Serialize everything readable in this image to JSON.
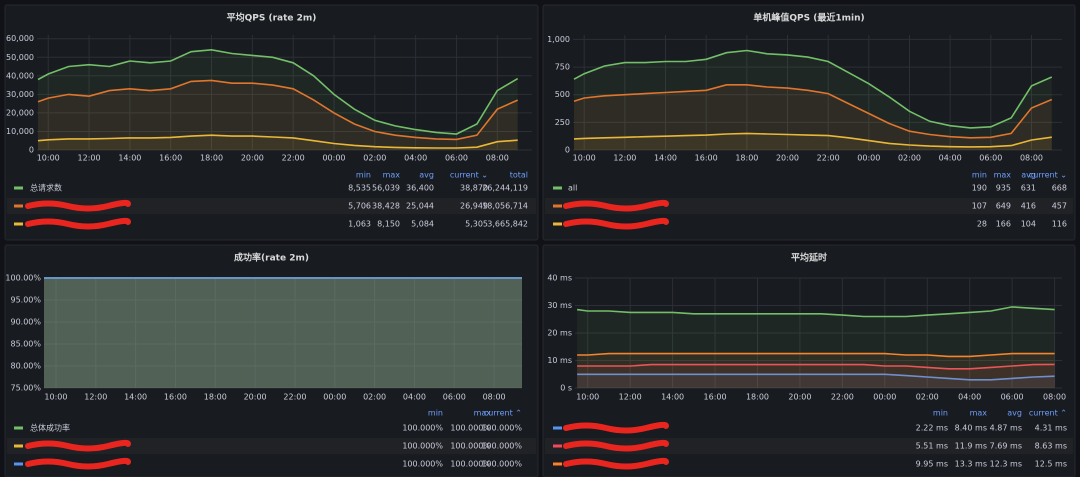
{
  "chart_data": [
    {
      "type": "line",
      "title": "平均QPS (rate 2m)",
      "x": [
        9.5,
        10,
        11,
        12,
        13,
        14,
        15,
        16,
        17,
        18,
        19,
        20,
        21,
        22,
        23,
        24,
        25,
        26,
        27,
        28,
        29,
        30,
        31,
        32,
        33
      ],
      "xlim": [
        9.45,
        33.7
      ],
      "xticks": [
        {
          "value": 10,
          "label": "10:00"
        },
        {
          "value": 12,
          "label": "12:00"
        },
        {
          "value": 14,
          "label": "14:00"
        },
        {
          "value": 16,
          "label": "16:00"
        },
        {
          "value": 18,
          "label": "18:00"
        },
        {
          "value": 20,
          "label": "20:00"
        },
        {
          "value": 22,
          "label": "22:00"
        },
        {
          "value": 24,
          "label": "00:00"
        },
        {
          "value": 26,
          "label": "02:00"
        },
        {
          "value": 28,
          "label": "04:00"
        },
        {
          "value": 30,
          "label": "06:00"
        },
        {
          "value": 32,
          "label": "08:00"
        }
      ],
      "ylim": [
        0,
        62000
      ],
      "yticks": [
        0,
        {
          "value": 10000,
          "label": "10,000"
        },
        {
          "value": 20000,
          "label": "20,000"
        },
        {
          "value": 30000,
          "label": "30,000"
        },
        {
          "value": 40000,
          "label": "40,000"
        },
        {
          "value": 50000,
          "label": "50,000"
        },
        {
          "value": 60000,
          "label": "60,000"
        }
      ],
      "grid": true,
      "legend_headers": [
        "min",
        "max",
        "avg",
        "current ⌄",
        "total"
      ],
      "series": [
        {
          "name": "总请求数",
          "color": "#73bf69",
          "values": [
            38000,
            41000,
            45000,
            46000,
            45000,
            48000,
            47000,
            48000,
            53000,
            54000,
            52000,
            51000,
            50000,
            47000,
            40000,
            30000,
            22000,
            16000,
            13000,
            11000,
            9500,
            8600,
            14000,
            32000,
            38500
          ],
          "stats": [
            "8,535",
            "56,039",
            "36,400",
            "38,870",
            "26,244,119"
          ]
        },
        {
          "color": "#e0752d",
          "values": [
            26000,
            28000,
            30000,
            29000,
            32000,
            33000,
            32000,
            33000,
            37000,
            37500,
            36000,
            36000,
            35000,
            33000,
            27000,
            20000,
            14000,
            10000,
            8000,
            6800,
            6000,
            5700,
            8000,
            22000,
            26900
          ],
          "stats": [
            "5,706",
            "38,428",
            "25,044",
            "26,949",
            "18,056,714"
          ]
        },
        {
          "color": "#eab839",
          "values": [
            5000,
            5500,
            6000,
            6000,
            6200,
            6500,
            6500,
            6800,
            7500,
            8000,
            7500,
            7500,
            7000,
            6500,
            5000,
            3500,
            2500,
            1800,
            1400,
            1200,
            1100,
            1063,
            1500,
            4500,
            5300
          ],
          "stats": [
            "1,063",
            "8,150",
            "5,084",
            "5,305",
            "3,665,842"
          ]
        }
      ]
    },
    {
      "type": "line",
      "title": "单机峰值QPS (最近1min)",
      "x": [
        9.5,
        10,
        11,
        12,
        13,
        14,
        15,
        16,
        17,
        18,
        19,
        20,
        21,
        22,
        23,
        24,
        25,
        26,
        27,
        28,
        29,
        30,
        31,
        32,
        33
      ],
      "xlim": [
        9.45,
        33.5
      ],
      "xticks": [
        {
          "value": 10,
          "label": "10:00"
        },
        {
          "value": 12,
          "label": "12:00"
        },
        {
          "value": 14,
          "label": "14:00"
        },
        {
          "value": 16,
          "label": "16:00"
        },
        {
          "value": 18,
          "label": "18:00"
        },
        {
          "value": 20,
          "label": "20:00"
        },
        {
          "value": 22,
          "label": "22:00"
        },
        {
          "value": 24,
          "label": "00:00"
        },
        {
          "value": 26,
          "label": "02:00"
        },
        {
          "value": 28,
          "label": "04:00"
        },
        {
          "value": 30,
          "label": "06:00"
        },
        {
          "value": 32,
          "label": "08:00"
        }
      ],
      "ylim": [
        0,
        1040
      ],
      "yticks": [
        0,
        250,
        500,
        750,
        {
          "value": 1000,
          "label": "1,000"
        }
      ],
      "grid": true,
      "legend_headers": [
        "min",
        "max",
        "avg",
        "current ⌄"
      ],
      "series": [
        {
          "name": "all",
          "color": "#73bf69",
          "values": [
            640,
            690,
            760,
            790,
            790,
            800,
            800,
            820,
            880,
            900,
            870,
            860,
            840,
            800,
            700,
            600,
            480,
            350,
            260,
            220,
            200,
            210,
            290,
            580,
            660
          ],
          "stats": [
            "190",
            "935",
            "631",
            "668"
          ]
        },
        {
          "color": "#e0752d",
          "values": [
            440,
            470,
            490,
            500,
            510,
            520,
            530,
            540,
            590,
            590,
            570,
            560,
            540,
            510,
            420,
            330,
            240,
            170,
            140,
            120,
            110,
            115,
            150,
            380,
            457
          ],
          "stats": [
            "107",
            "649",
            "416",
            "457"
          ]
        },
        {
          "color": "#eab839",
          "values": [
            100,
            105,
            110,
            115,
            120,
            125,
            130,
            135,
            145,
            150,
            145,
            140,
            135,
            130,
            110,
            85,
            60,
            45,
            35,
            30,
            28,
            30,
            40,
            90,
            116
          ],
          "stats": [
            "28",
            "166",
            "104",
            "116"
          ]
        }
      ]
    },
    {
      "type": "line",
      "title": "成功率(rate 2m)",
      "x": [
        9.4,
        33.4
      ],
      "xlim": [
        9.4,
        33.4
      ],
      "xticks": [
        {
          "value": 10,
          "label": "10:00"
        },
        {
          "value": 12,
          "label": "12:00"
        },
        {
          "value": 14,
          "label": "14:00"
        },
        {
          "value": 16,
          "label": "16:00"
        },
        {
          "value": 18,
          "label": "18:00"
        },
        {
          "value": 20,
          "label": "20:00"
        },
        {
          "value": 22,
          "label": "22:00"
        },
        {
          "value": 24,
          "label": "00:00"
        },
        {
          "value": 26,
          "label": "02:00"
        },
        {
          "value": 28,
          "label": "04:00"
        },
        {
          "value": 30,
          "label": "06:00"
        },
        {
          "value": 32,
          "label": "08:00"
        }
      ],
      "ylim": [
        75,
        100
      ],
      "yticks": [
        {
          "value": 75,
          "label": "75.00%"
        },
        {
          "value": 80,
          "label": "80.00%"
        },
        {
          "value": 85,
          "label": "85.00%"
        },
        {
          "value": 90,
          "label": "90.00%"
        },
        {
          "value": 95,
          "label": "95.00%"
        },
        {
          "value": 100,
          "label": "100.00%"
        }
      ],
      "grid": true,
      "legend_headers": [
        "min",
        "max",
        "current ⌃"
      ],
      "series": [
        {
          "name": "总体成功率",
          "color": "#73bf69",
          "values": [
            100,
            100
          ],
          "stats": [
            "100.000%",
            "100.000%",
            "100.000%"
          ]
        },
        {
          "color": "#eab839",
          "values": [
            100,
            100
          ],
          "stats": [
            "100.000%",
            "100.000%",
            "100.000%"
          ]
        },
        {
          "color": "#5794f2",
          "values": [
            100,
            100
          ],
          "stats": [
            "100.000%",
            "100.000%",
            "100.000%"
          ]
        }
      ]
    },
    {
      "type": "line",
      "title": "平均延时",
      "x": [
        9.5,
        10,
        11,
        12,
        13,
        14,
        15,
        16,
        17,
        18,
        19,
        20,
        21,
        22,
        23,
        24,
        25,
        26,
        27,
        28,
        29,
        30,
        31,
        32
      ],
      "xlim": [
        9.4,
        32.35
      ],
      "xticks": [
        {
          "value": 10,
          "label": "10:00"
        },
        {
          "value": 12,
          "label": "12:00"
        },
        {
          "value": 14,
          "label": "14:00"
        },
        {
          "value": 16,
          "label": "16:00"
        },
        {
          "value": 18,
          "label": "18:00"
        },
        {
          "value": 20,
          "label": "20:00"
        },
        {
          "value": 22,
          "label": "22:00"
        },
        {
          "value": 24,
          "label": "00:00"
        },
        {
          "value": 26,
          "label": "02:00"
        },
        {
          "value": 28,
          "label": "04:00"
        },
        {
          "value": 30,
          "label": "06:00"
        },
        {
          "value": 32,
          "label": "08:00"
        }
      ],
      "ylim": [
        0,
        40
      ],
      "yticks": [
        {
          "value": 0,
          "label": "0 s"
        },
        {
          "value": 10,
          "label": "10 ms"
        },
        {
          "value": 20,
          "label": "20 ms"
        },
        {
          "value": 30,
          "label": "30 ms"
        },
        {
          "value": 40,
          "label": "40 ms"
        }
      ],
      "grid": true,
      "legend_headers": [
        "min",
        "max",
        "avg",
        "current ⌃"
      ],
      "series": [
        {
          "color": "#5794f2",
          "values": [
            5,
            5,
            5,
            5,
            5,
            5,
            5,
            5,
            5,
            5,
            5,
            5,
            5,
            5,
            5,
            5,
            4.5,
            4,
            3.5,
            3,
            3,
            3.5,
            4,
            4.3
          ],
          "stats": [
            "2.22 ms",
            "8.40 ms",
            "4.87 ms",
            "4.31 ms"
          ]
        },
        {
          "color": "#f2495c",
          "values": [
            8,
            8,
            8,
            8,
            8.5,
            8.5,
            8.5,
            8.5,
            8.5,
            8.5,
            8.5,
            8.5,
            8.5,
            8.5,
            8.5,
            8,
            8,
            7.5,
            7,
            7,
            7.5,
            8,
            8.5,
            8.6
          ],
          "stats": [
            "5.51 ms",
            "11.9 ms",
            "7.69 ms",
            "8.63 ms"
          ]
        },
        {
          "color": "#ff7f2a",
          "values": [
            12,
            12,
            12.5,
            12.5,
            12.5,
            12.5,
            12.5,
            12.5,
            12.5,
            12.5,
            12.5,
            12.5,
            12.5,
            12.5,
            12.5,
            12.5,
            12,
            12,
            11.5,
            11.5,
            12,
            12.5,
            12.5,
            12.5
          ],
          "stats": [
            "9.95 ms",
            "13.3 ms",
            "12.3 ms",
            "12.5 ms"
          ]
        },
        {
          "color": "#73bf69",
          "values": [
            28.5,
            28,
            28,
            27.5,
            27.5,
            27.5,
            27,
            27,
            27,
            27,
            27,
            27,
            27,
            26.5,
            26,
            26,
            26,
            26.5,
            27,
            27.5,
            28,
            29.5,
            29,
            28.5
          ]
        }
      ]
    }
  ]
}
